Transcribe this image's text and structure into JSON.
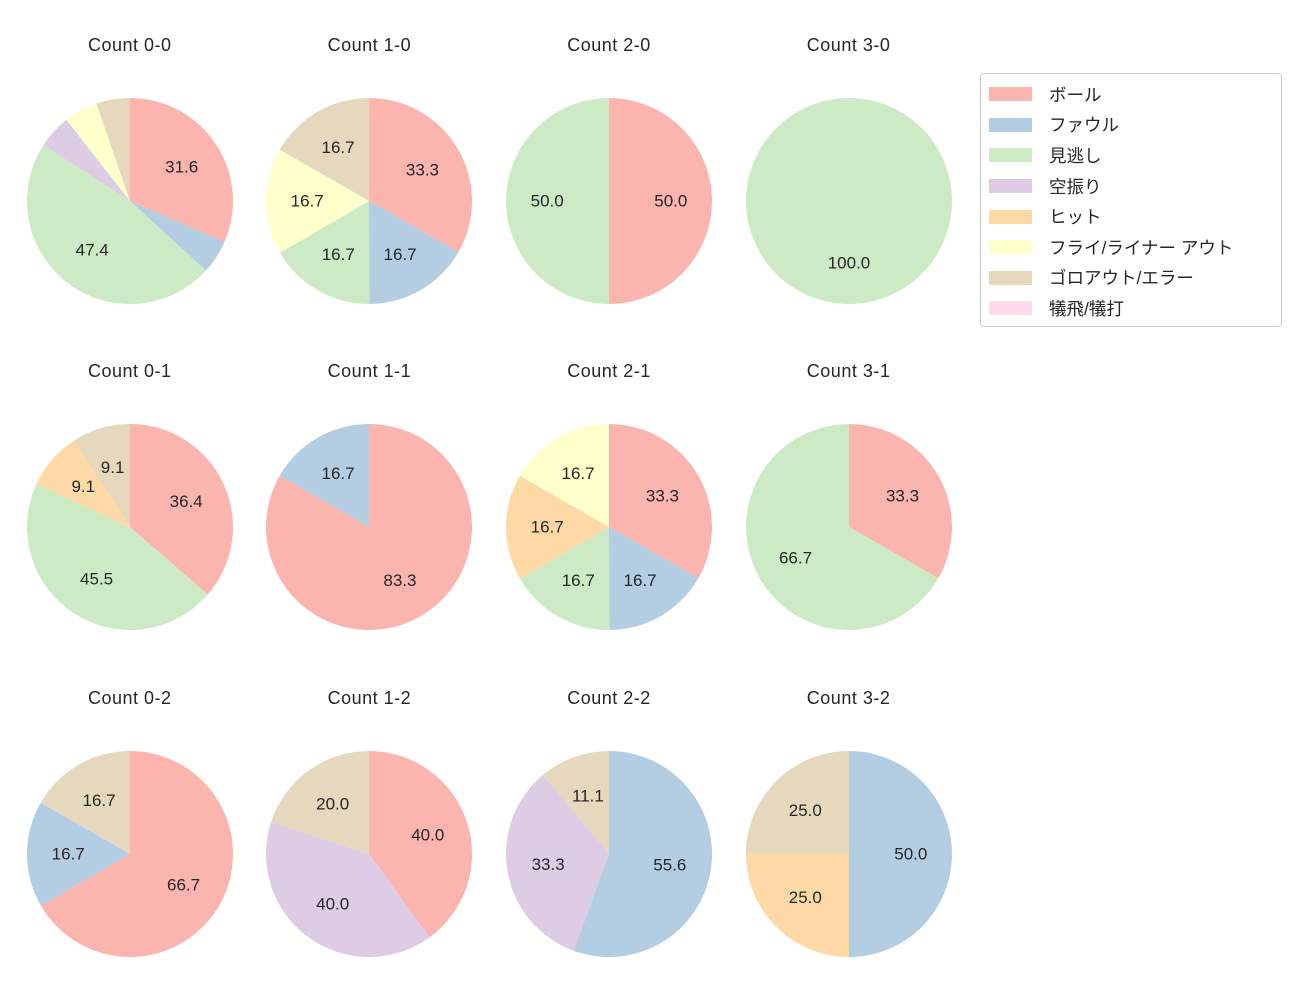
{
  "figure": {
    "background": "#ffffff",
    "text_color": "#262626"
  },
  "legend": {
    "items": [
      {
        "label": "ボール",
        "color": "#fbb4ae"
      },
      {
        "label": "ファウル",
        "color": "#b3cde3"
      },
      {
        "label": "見逃し",
        "color": "#ccebc5"
      },
      {
        "label": "空振り",
        "color": "#decbe4"
      },
      {
        "label": "ヒット",
        "color": "#fed9a6"
      },
      {
        "label": "フライ/ライナー アウト",
        "color": "#ffffcc"
      },
      {
        "label": "ゴロアウト/エラー",
        "color": "#e5d8bd"
      },
      {
        "label": "犠飛/犠打",
        "color": "#fddaec"
      }
    ]
  },
  "chart_data": [
    {
      "type": "pie",
      "title": "Count 0-0",
      "slices": [
        {
          "category": "ボール",
          "value": 31.6,
          "label": "31.6"
        },
        {
          "category": "ファウル",
          "value": 5.3,
          "label": ""
        },
        {
          "category": "見逃し",
          "value": 47.4,
          "label": "47.4"
        },
        {
          "category": "空振り",
          "value": 5.3,
          "label": ""
        },
        {
          "category": "フライ/ライナー アウト",
          "value": 5.3,
          "label": ""
        },
        {
          "category": "ゴロアウト/エラー",
          "value": 5.3,
          "label": ""
        }
      ]
    },
    {
      "type": "pie",
      "title": "Count 1-0",
      "slices": [
        {
          "category": "ボール",
          "value": 33.3,
          "label": "33.3"
        },
        {
          "category": "ファウル",
          "value": 16.7,
          "label": "16.7"
        },
        {
          "category": "見逃し",
          "value": 16.7,
          "label": "16.7"
        },
        {
          "category": "フライ/ライナー アウト",
          "value": 16.7,
          "label": "16.7"
        },
        {
          "category": "ゴロアウト/エラー",
          "value": 16.7,
          "label": "16.7"
        }
      ]
    },
    {
      "type": "pie",
      "title": "Count 2-0",
      "slices": [
        {
          "category": "ボール",
          "value": 50.0,
          "label": "50.0"
        },
        {
          "category": "見逃し",
          "value": 50.0,
          "label": "50.0"
        }
      ]
    },
    {
      "type": "pie",
      "title": "Count 3-0",
      "slices": [
        {
          "category": "見逃し",
          "value": 100.0,
          "label": "100.0"
        }
      ]
    },
    {
      "type": "pie",
      "title": "Count 0-1",
      "slices": [
        {
          "category": "ボール",
          "value": 36.4,
          "label": "36.4"
        },
        {
          "category": "見逃し",
          "value": 45.5,
          "label": "45.5"
        },
        {
          "category": "ヒット",
          "value": 9.1,
          "label": "9.1"
        },
        {
          "category": "ゴロアウト/エラー",
          "value": 9.1,
          "label": "9.1"
        }
      ]
    },
    {
      "type": "pie",
      "title": "Count 1-1",
      "slices": [
        {
          "category": "ボール",
          "value": 83.3,
          "label": "83.3"
        },
        {
          "category": "ファウル",
          "value": 16.7,
          "label": "16.7"
        }
      ]
    },
    {
      "type": "pie",
      "title": "Count 2-1",
      "slices": [
        {
          "category": "ボール",
          "value": 33.3,
          "label": "33.3"
        },
        {
          "category": "ファウル",
          "value": 16.7,
          "label": "16.7"
        },
        {
          "category": "見逃し",
          "value": 16.7,
          "label": "16.7"
        },
        {
          "category": "ヒット",
          "value": 16.7,
          "label": "16.7"
        },
        {
          "category": "フライ/ライナー アウト",
          "value": 16.7,
          "label": "16.7"
        }
      ]
    },
    {
      "type": "pie",
      "title": "Count 3-1",
      "slices": [
        {
          "category": "ボール",
          "value": 33.3,
          "label": "33.3"
        },
        {
          "category": "見逃し",
          "value": 66.7,
          "label": "66.7"
        }
      ]
    },
    {
      "type": "pie",
      "title": "Count 0-2",
      "slices": [
        {
          "category": "ボール",
          "value": 66.7,
          "label": "66.7"
        },
        {
          "category": "ファウル",
          "value": 16.7,
          "label": "16.7"
        },
        {
          "category": "ゴロアウト/エラー",
          "value": 16.7,
          "label": "16.7"
        }
      ]
    },
    {
      "type": "pie",
      "title": "Count 1-2",
      "slices": [
        {
          "category": "ボール",
          "value": 40.0,
          "label": "40.0"
        },
        {
          "category": "空振り",
          "value": 40.0,
          "label": "40.0"
        },
        {
          "category": "ゴロアウト/エラー",
          "value": 20.0,
          "label": "20.0"
        }
      ]
    },
    {
      "type": "pie",
      "title": "Count 2-2",
      "slices": [
        {
          "category": "ファウル",
          "value": 55.6,
          "label": "55.6"
        },
        {
          "category": "空振り",
          "value": 33.3,
          "label": "33.3"
        },
        {
          "category": "ゴロアウト/エラー",
          "value": 11.1,
          "label": "11.1"
        }
      ]
    },
    {
      "type": "pie",
      "title": "Count 3-2",
      "slices": [
        {
          "category": "ファウル",
          "value": 50.0,
          "label": "50.0"
        },
        {
          "category": "ヒット",
          "value": 25.0,
          "label": "25.0"
        },
        {
          "category": "ゴロアウト/エラー",
          "value": 25.0,
          "label": "25.0"
        }
      ]
    }
  ]
}
